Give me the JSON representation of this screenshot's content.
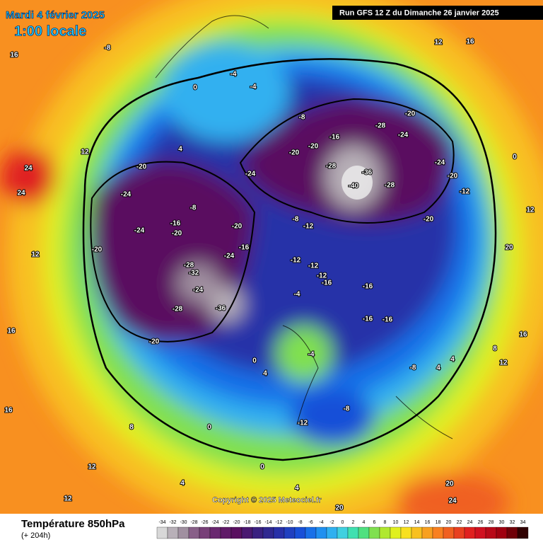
{
  "header": {
    "date": "Mardi 4 février 2025",
    "time": "1:00 locale",
    "run": "Run GFS 12 Z du Dimanche 26 janvier 2025"
  },
  "copyright": "Copyright © 2025 Meteociel.fr",
  "footer": {
    "title": "Température 850hPa",
    "lead": "(+ 204h)"
  },
  "scale": {
    "ticks": [
      -34,
      -32,
      -30,
      -28,
      -26,
      -24,
      -22,
      -20,
      -18,
      -16,
      -14,
      -12,
      -10,
      -8,
      -6,
      -4,
      -2,
      0,
      2,
      4,
      6,
      8,
      10,
      12,
      14,
      16,
      18,
      20,
      22,
      24,
      26,
      28,
      30,
      32,
      34
    ],
    "colors": [
      "#d8d8d8",
      "#b8b0b8",
      "#a090a0",
      "#886088",
      "#784078",
      "#6a2870",
      "#601a68",
      "#5a1060",
      "#4a1870",
      "#3a2080",
      "#302890",
      "#2830a8",
      "#2040c0",
      "#1850d8",
      "#1870e8",
      "#2090f0",
      "#30b0f0",
      "#40d0e0",
      "#40e0b0",
      "#50e080",
      "#80e050",
      "#b0e830",
      "#e0f020",
      "#f8e020",
      "#f8c020",
      "#f8a020",
      "#f88020",
      "#f06020",
      "#e84020",
      "#e02020",
      "#d01020",
      "#b80818",
      "#a00010",
      "#700008",
      "#300000"
    ]
  },
  "map_labels": [
    16,
    -8,
    24,
    24,
    12,
    12,
    -20,
    -24,
    -24,
    -20,
    -16,
    -20,
    -24,
    -28,
    -32,
    -24,
    -28,
    -36,
    -20,
    -20,
    -16,
    -24,
    -8,
    -8,
    -12,
    -12,
    -12,
    -12,
    -16,
    -4,
    -16,
    -16,
    -16,
    -8,
    -16,
    -20,
    -20,
    -28,
    -24,
    -20,
    -28,
    -40,
    -36,
    -28,
    -20,
    -24,
    -20,
    -12,
    0,
    -4,
    -4,
    4,
    0,
    4,
    -4,
    -8,
    -12,
    -8,
    4,
    4,
    8,
    12,
    16,
    20,
    12,
    0,
    8,
    12,
    12,
    4,
    0,
    0,
    20,
    24,
    20,
    4,
    16,
    16,
    16,
    12
  ]
}
